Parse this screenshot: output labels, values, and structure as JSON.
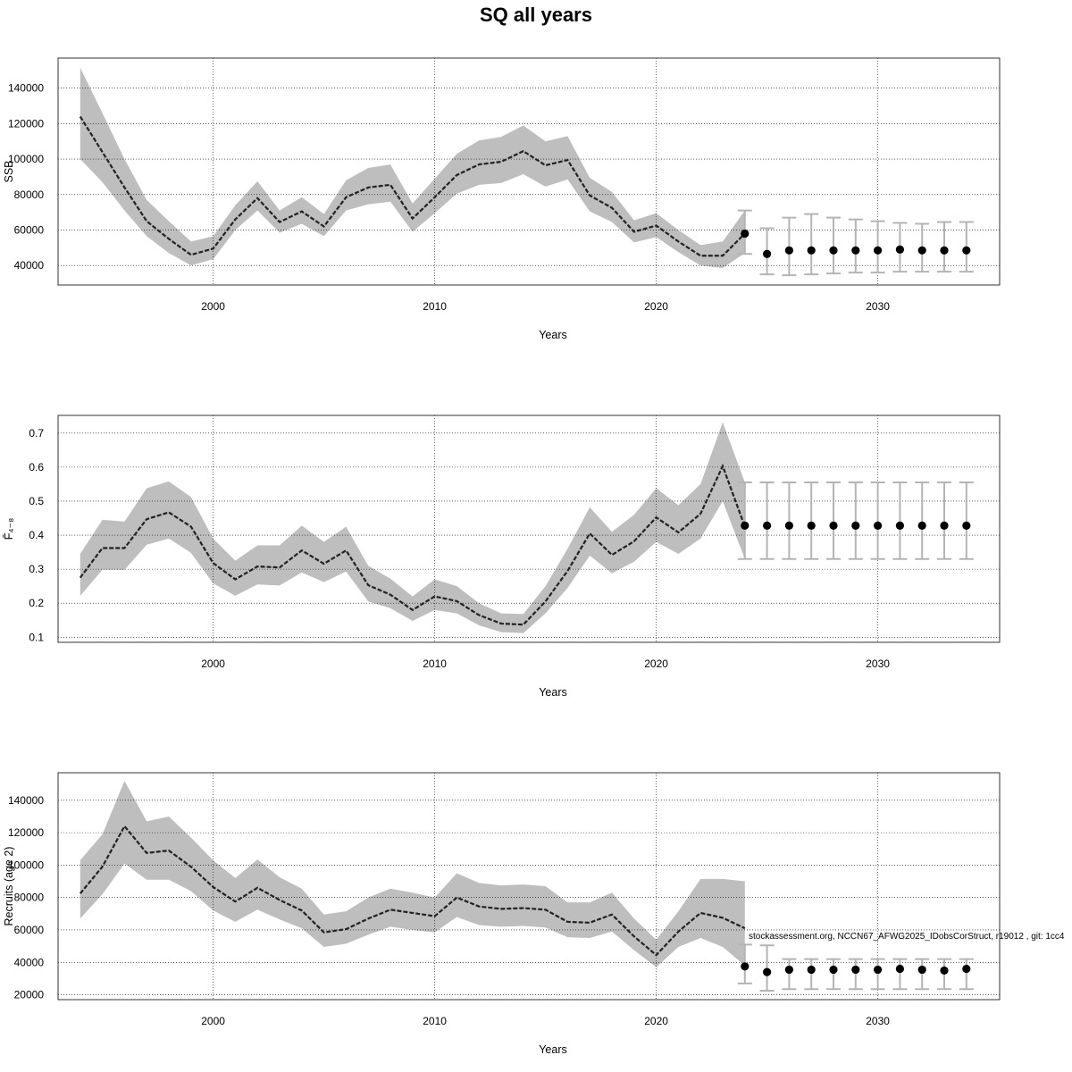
{
  "figure": {
    "title": "SQ all years"
  },
  "footer_note": "stockassessment.org, NCCN67_AFWG2025_IDobsCorStruct, r19012 , git: 1cc4",
  "colors": {
    "band": "#bebebe",
    "line": "#222222",
    "grid": "#000000",
    "errorbar": "#b4b4b4",
    "point": "#000000"
  },
  "chart_data": [
    {
      "type": "line",
      "xlabel": "Years",
      "ylabel": "SSB",
      "xlim": [
        1993.0,
        2035.5
      ],
      "ylim": [
        29000,
        157000
      ],
      "xticks": [
        2000,
        2010,
        2020,
        2030
      ],
      "yticks": [
        40000,
        60000,
        80000,
        100000,
        120000,
        140000
      ],
      "grid": true,
      "series": [
        {
          "role": "estimate",
          "x": [
            1994,
            1995,
            1996,
            1997,
            1998,
            1999,
            2000,
            2001,
            2002,
            2003,
            2004,
            2005,
            2006,
            2007,
            2008,
            2009,
            2010,
            2011,
            2012,
            2013,
            2014,
            2015,
            2016,
            2017,
            2018,
            2019,
            2020,
            2021,
            2022,
            2023,
            2024
          ],
          "y": [
            124000,
            104000,
            84000,
            65000,
            55000,
            46000,
            49500,
            66000,
            78000,
            64500,
            70500,
            62000,
            78500,
            84000,
            85500,
            66500,
            78500,
            91000,
            97000,
            98500,
            104500,
            96500,
            99500,
            79500,
            72500,
            59000,
            62500,
            53500,
            45500,
            45500,
            58000
          ],
          "lower": [
            100000,
            87000,
            71000,
            56500,
            47000,
            40000,
            43500,
            60000,
            71000,
            58500,
            63500,
            56500,
            71000,
            74500,
            76000,
            59000,
            69500,
            80500,
            85500,
            86500,
            91500,
            84500,
            88500,
            70500,
            64500,
            53000,
            56000,
            47500,
            40000,
            38500,
            47000
          ],
          "upper": [
            151500,
            126000,
            100000,
            77000,
            65000,
            53500,
            56500,
            74000,
            87500,
            71000,
            78500,
            69000,
            88000,
            95000,
            97000,
            75000,
            89000,
            103000,
            110500,
            112500,
            119000,
            110000,
            113000,
            89500,
            81500,
            65500,
            69500,
            60000,
            51500,
            53500,
            71000
          ]
        },
        {
          "role": "projection",
          "x": [
            2024,
            2025,
            2026,
            2027,
            2028,
            2029,
            2030,
            2031,
            2032,
            2033,
            2034
          ],
          "y": [
            58000,
            46500,
            48500,
            48500,
            48500,
            48500,
            48500,
            49000,
            48500,
            48500,
            48500
          ],
          "lower": [
            46500,
            35000,
            34500,
            35000,
            35500,
            36000,
            36000,
            36500,
            36500,
            36500,
            36500
          ],
          "upper": [
            71000,
            61000,
            67000,
            69000,
            67000,
            66000,
            65000,
            64000,
            63500,
            64500,
            64500
          ]
        }
      ]
    },
    {
      "type": "line",
      "xlabel": "Years",
      "ylabel": "F̄₄₋₈",
      "xlim": [
        1993.0,
        2035.5
      ],
      "ylim": [
        0.085,
        0.752
      ],
      "xticks": [
        2000,
        2010,
        2020,
        2030
      ],
      "yticks": [
        0.1,
        0.2,
        0.3,
        0.4,
        0.5,
        0.6,
        0.7
      ],
      "grid": true,
      "series": [
        {
          "role": "estimate",
          "x": [
            1994,
            1995,
            1996,
            1997,
            1998,
            1999,
            2000,
            2001,
            2002,
            2003,
            2004,
            2005,
            2006,
            2007,
            2008,
            2009,
            2010,
            2011,
            2012,
            2013,
            2014,
            2015,
            2016,
            2017,
            2018,
            2019,
            2020,
            2021,
            2022,
            2023,
            2024
          ],
          "y": [
            0.275,
            0.362,
            0.362,
            0.447,
            0.467,
            0.425,
            0.318,
            0.27,
            0.308,
            0.305,
            0.355,
            0.316,
            0.355,
            0.253,
            0.225,
            0.18,
            0.22,
            0.206,
            0.165,
            0.14,
            0.137,
            0.205,
            0.295,
            0.405,
            0.342,
            0.382,
            0.452,
            0.408,
            0.463,
            0.603,
            0.425
          ],
          "lower": [
            0.222,
            0.298,
            0.298,
            0.372,
            0.39,
            0.348,
            0.258,
            0.222,
            0.255,
            0.252,
            0.29,
            0.262,
            0.293,
            0.205,
            0.185,
            0.148,
            0.18,
            0.17,
            0.135,
            0.115,
            0.112,
            0.17,
            0.245,
            0.34,
            0.288,
            0.322,
            0.38,
            0.345,
            0.39,
            0.5,
            0.33
          ],
          "upper": [
            0.345,
            0.445,
            0.44,
            0.538,
            0.558,
            0.512,
            0.39,
            0.325,
            0.37,
            0.37,
            0.428,
            0.38,
            0.425,
            0.31,
            0.272,
            0.22,
            0.27,
            0.25,
            0.2,
            0.17,
            0.168,
            0.25,
            0.36,
            0.482,
            0.41,
            0.46,
            0.538,
            0.488,
            0.55,
            0.732,
            0.555
          ]
        },
        {
          "role": "projection",
          "x": [
            2024,
            2025,
            2026,
            2027,
            2028,
            2029,
            2030,
            2031,
            2032,
            2033,
            2034
          ],
          "y": [
            0.428,
            0.428,
            0.428,
            0.428,
            0.428,
            0.428,
            0.428,
            0.428,
            0.428,
            0.428,
            0.428
          ],
          "lower": [
            0.33,
            0.33,
            0.33,
            0.33,
            0.33,
            0.33,
            0.33,
            0.33,
            0.33,
            0.33,
            0.33
          ],
          "upper": [
            0.555,
            0.555,
            0.555,
            0.555,
            0.555,
            0.555,
            0.555,
            0.555,
            0.555,
            0.555,
            0.555
          ]
        }
      ]
    },
    {
      "type": "line",
      "xlabel": "Years",
      "ylabel": "Recruits (age 2)",
      "xlim": [
        1993.0,
        2035.5
      ],
      "ylim": [
        17000,
        157000
      ],
      "xticks": [
        2000,
        2010,
        2020,
        2030
      ],
      "yticks": [
        20000,
        40000,
        60000,
        80000,
        100000,
        120000,
        140000
      ],
      "grid": true,
      "series": [
        {
          "role": "estimate",
          "x": [
            1994,
            1995,
            1996,
            1997,
            1998,
            1999,
            2000,
            2001,
            2002,
            2003,
            2004,
            2005,
            2006,
            2007,
            2008,
            2009,
            2010,
            2011,
            2012,
            2013,
            2014,
            2015,
            2016,
            2017,
            2018,
            2019,
            2020,
            2021,
            2022,
            2023,
            2024
          ],
          "y": [
            82500,
            99000,
            124000,
            107500,
            109000,
            99000,
            86500,
            77500,
            86000,
            78500,
            72000,
            58500,
            60500,
            67000,
            72500,
            70500,
            68500,
            80000,
            74500,
            73000,
            73500,
            72500,
            65000,
            64500,
            69500,
            56000,
            44500,
            59000,
            70500,
            67500,
            61000
          ],
          "lower": [
            67000,
            82000,
            101000,
            91000,
            91000,
            84000,
            72000,
            65000,
            72500,
            66500,
            61000,
            49500,
            51500,
            57000,
            62000,
            60000,
            58500,
            68000,
            63000,
            62000,
            62500,
            61500,
            55500,
            55000,
            59000,
            47500,
            37000,
            49500,
            55000,
            49500,
            38000
          ],
          "upper": [
            103000,
            119000,
            152000,
            127000,
            130000,
            117000,
            103000,
            92000,
            103500,
            92500,
            85500,
            69500,
            71500,
            80000,
            85500,
            83000,
            80000,
            95000,
            89000,
            87500,
            88000,
            87000,
            77000,
            77000,
            83000,
            67000,
            54000,
            71500,
            91500,
            91500,
            90000
          ]
        },
        {
          "role": "projection",
          "x": [
            2024,
            2025,
            2026,
            2027,
            2028,
            2029,
            2030,
            2031,
            2032,
            2033,
            2034
          ],
          "y": [
            37500,
            34000,
            35500,
            35500,
            35500,
            35500,
            35500,
            36000,
            35500,
            35000,
            36000
          ],
          "lower": [
            27000,
            22500,
            23500,
            23500,
            23500,
            23500,
            23500,
            23500,
            23500,
            23500,
            23500
          ],
          "upper": [
            51000,
            50500,
            42000,
            42000,
            42000,
            42000,
            42000,
            42000,
            42000,
            42000,
            42000
          ]
        }
      ]
    }
  ]
}
